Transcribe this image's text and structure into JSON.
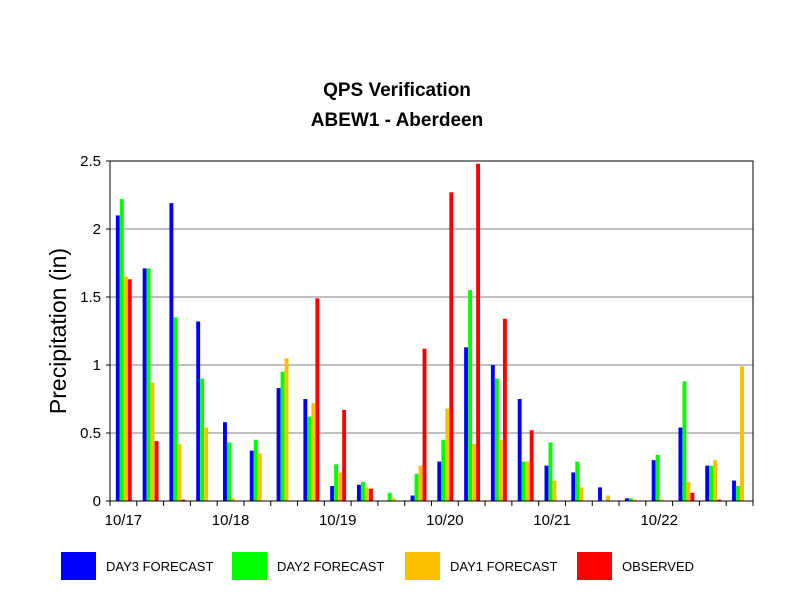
{
  "chart_data": {
    "type": "bar",
    "title": "QPS Verification",
    "subtitle": "ABEW1 - Aberdeen",
    "ylabel": "Precipitation (in)",
    "xlabel": "",
    "ylim": [
      0,
      2.5
    ],
    "yticks": [
      "0",
      "0.5",
      "1",
      "1.5",
      "2",
      "2.5"
    ],
    "ytick_values": [
      0,
      0.5,
      1,
      1.5,
      2,
      2.5
    ],
    "grid": true,
    "legend_position": "bottom",
    "x_tick_labels": [
      {
        "label": "10/17",
        "index": 0
      },
      {
        "label": "10/18",
        "index": 4
      },
      {
        "label": "10/19",
        "index": 8
      },
      {
        "label": "10/20",
        "index": 12
      },
      {
        "label": "10/21",
        "index": 16
      },
      {
        "label": "10/22",
        "index": 20
      }
    ],
    "num_periods": 24,
    "series": [
      {
        "name": "DAY3 FORECAST",
        "color": "#0000ff",
        "values": [
          2.1,
          1.71,
          2.19,
          1.32,
          0.58,
          0.37,
          0.83,
          0.75,
          0.11,
          0.12,
          0.0,
          0.04,
          0.29,
          1.13,
          1.0,
          0.75,
          0.26,
          0.21,
          0.1,
          0.02,
          0.3,
          0.54,
          0.26,
          0.15
        ]
      },
      {
        "name": "DAY2 FORECAST",
        "color": "#00ff00",
        "values": [
          2.22,
          1.71,
          1.35,
          0.9,
          0.43,
          0.45,
          0.95,
          0.62,
          0.27,
          0.14,
          0.06,
          0.2,
          0.45,
          1.55,
          0.9,
          0.29,
          0.43,
          0.29,
          0.0,
          0.02,
          0.34,
          0.88,
          0.26,
          0.11
        ]
      },
      {
        "name": "DAY1 FORECAST",
        "color": "#ffbf00",
        "values": [
          1.65,
          0.87,
          0.42,
          0.54,
          0.02,
          0.35,
          1.05,
          0.72,
          0.21,
          0.1,
          0.02,
          0.26,
          0.68,
          0.42,
          0.45,
          0.29,
          0.15,
          0.1,
          0.04,
          0.01,
          0.01,
          0.14,
          0.3,
          0.99
        ]
      },
      {
        "name": "OBSERVED",
        "color": "#ff0000",
        "values": [
          1.63,
          0.44,
          0.01,
          0.0,
          0.0,
          0.0,
          0.0,
          1.49,
          0.67,
          0.09,
          0.0,
          1.12,
          2.27,
          2.48,
          1.34,
          0.52,
          0.0,
          0.0,
          0.0,
          0.0,
          0.0,
          0.06,
          0.01,
          0.0
        ]
      }
    ]
  }
}
